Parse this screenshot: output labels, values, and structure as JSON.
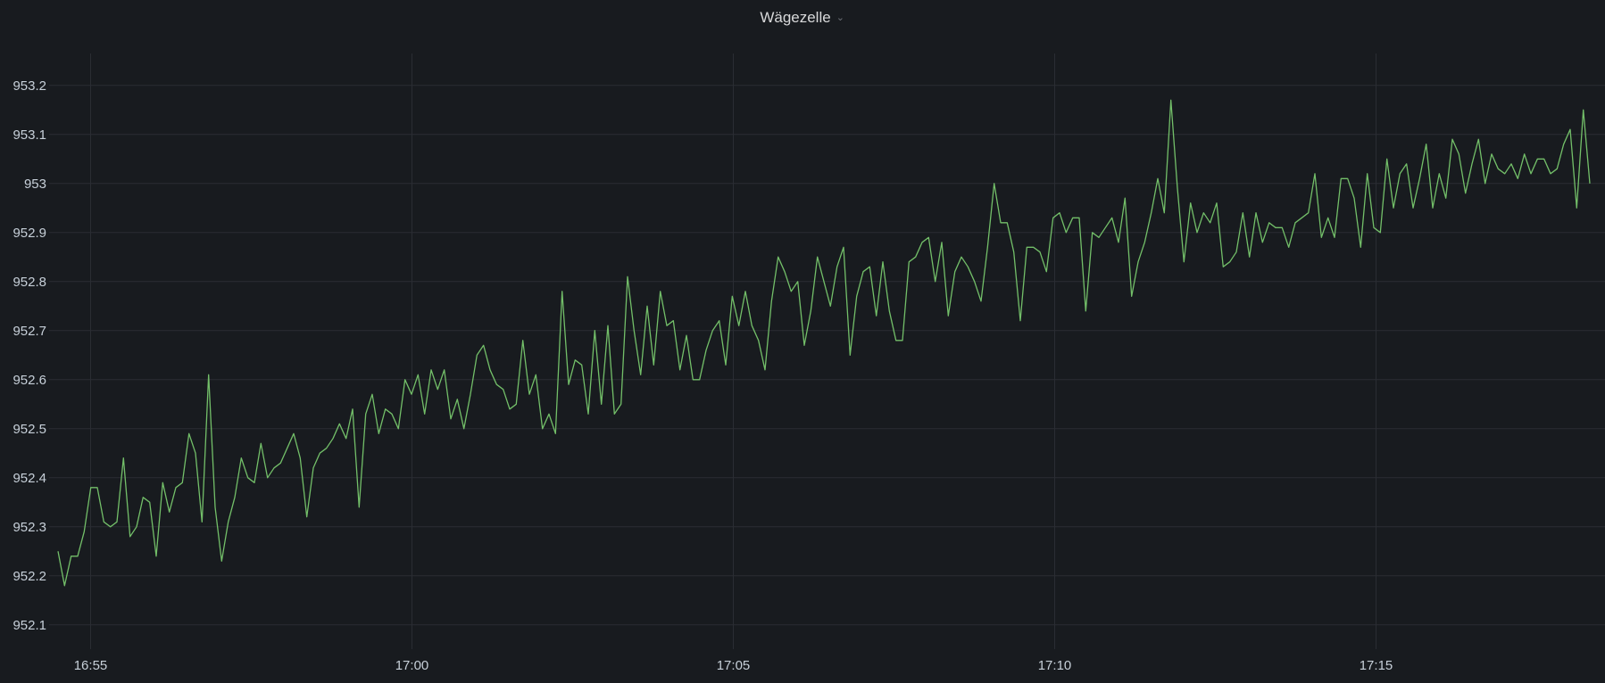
{
  "panel": {
    "title": "Wägezelle",
    "menu_icon": "chevron-down-icon"
  },
  "chart_data": {
    "type": "line",
    "title": "Wägezelle",
    "xlabel": "",
    "ylabel": "",
    "grid": true,
    "line_color": "#73bf69",
    "ylim": [
      952.065,
      953.265
    ],
    "y_ticks": [
      952.1,
      952.2,
      952.3,
      952.4,
      952.5,
      952.6,
      952.7,
      952.8,
      952.9,
      953,
      953.1,
      953.2
    ],
    "y_tick_labels": [
      "952.1",
      "952.2",
      "952.3",
      "952.4",
      "952.5",
      "952.6",
      "952.7",
      "952.8",
      "952.9",
      "953",
      "953.1",
      "953.2"
    ],
    "x_range_minutes": [
      "16:54.5",
      "17:18.6"
    ],
    "x_ticks": [
      "16:55",
      "17:00",
      "17:05",
      "17:10",
      "17:15"
    ],
    "series": [
      {
        "values": [
          952.25,
          952.18,
          952.24,
          952.24,
          952.29,
          952.38,
          952.38,
          952.31,
          952.3,
          952.31,
          952.44,
          952.28,
          952.3,
          952.36,
          952.35,
          952.24,
          952.39,
          952.33,
          952.38,
          952.39,
          952.49,
          952.45,
          952.31,
          952.61,
          952.34,
          952.23,
          952.31,
          952.36,
          952.44,
          952.4,
          952.39,
          952.47,
          952.4,
          952.42,
          952.43,
          952.46,
          952.49,
          952.44,
          952.32,
          952.42,
          952.45,
          952.46,
          952.48,
          952.51,
          952.48,
          952.54,
          952.34,
          952.53,
          952.57,
          952.49,
          952.54,
          952.53,
          952.5,
          952.6,
          952.57,
          952.61,
          952.53,
          952.62,
          952.58,
          952.62,
          952.52,
          952.56,
          952.5,
          952.57,
          952.65,
          952.67,
          952.62,
          952.59,
          952.58,
          952.54,
          952.55,
          952.68,
          952.57,
          952.61,
          952.5,
          952.53,
          952.49,
          952.78,
          952.59,
          952.64,
          952.63,
          952.53,
          952.7,
          952.55,
          952.71,
          952.53,
          952.55,
          952.81,
          952.7,
          952.61,
          952.75,
          952.63,
          952.78,
          952.71,
          952.72,
          952.62,
          952.69,
          952.6,
          952.6,
          952.66,
          952.7,
          952.72,
          952.63,
          952.77,
          952.71,
          952.78,
          952.71,
          952.68,
          952.62,
          952.76,
          952.85,
          952.82,
          952.78,
          952.8,
          952.67,
          952.74,
          952.85,
          952.8,
          952.75,
          952.83,
          952.87,
          952.65,
          952.77,
          952.82,
          952.83,
          952.73,
          952.84,
          952.74,
          952.68,
          952.68,
          952.84,
          952.85,
          952.88,
          952.89,
          952.8,
          952.88,
          952.73,
          952.82,
          952.85,
          952.83,
          952.8,
          952.76,
          952.87,
          953.0,
          952.92,
          952.92,
          952.86,
          952.72,
          952.87,
          952.87,
          952.86,
          952.82,
          952.93,
          952.94,
          952.9,
          952.93,
          952.93,
          952.74,
          952.9,
          952.89,
          952.91,
          952.93,
          952.88,
          952.97,
          952.77,
          952.84,
          952.88,
          952.94,
          953.01,
          952.94,
          953.17,
          952.99,
          952.84,
          952.96,
          952.9,
          952.94,
          952.92,
          952.96,
          952.83,
          952.84,
          952.86,
          952.94,
          952.85,
          952.94,
          952.88,
          952.92,
          952.91,
          952.91,
          952.87,
          952.92,
          952.93,
          952.94,
          953.02,
          952.89,
          952.93,
          952.89,
          953.01,
          953.01,
          952.97,
          952.87,
          953.02,
          952.91,
          952.9,
          953.05,
          952.95,
          953.02,
          953.04,
          952.95,
          953.01,
          953.08,
          952.95,
          953.02,
          952.97,
          953.09,
          953.06,
          952.98,
          953.04,
          953.09,
          953.0,
          953.06,
          953.03,
          953.02,
          953.04,
          953.01,
          953.06,
          953.02,
          953.05,
          953.05,
          953.02,
          953.03,
          953.08,
          953.11,
          952.95,
          953.15,
          953.0
        ]
      }
    ]
  }
}
